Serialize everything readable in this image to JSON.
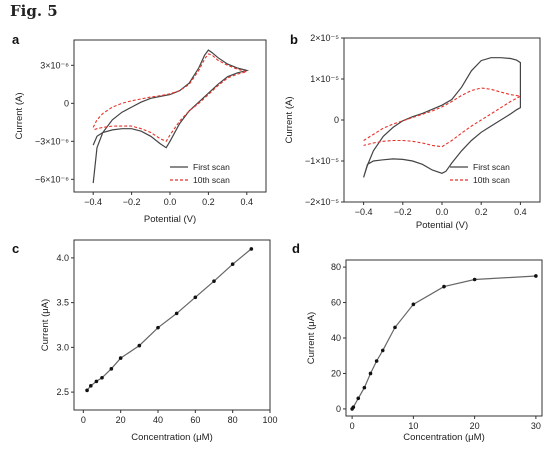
{
  "figure": {
    "title": "Fig. 5"
  },
  "colors": {
    "axis": "#333333",
    "solid": "#444444",
    "dashed": "#e8322a",
    "marker": "#111111"
  },
  "chart_data": [
    {
      "id": "a",
      "panel_label": "a",
      "type": "line",
      "xlabel": "Potential (V)",
      "ylabel": "Current (A)",
      "xlim": [
        -0.5,
        0.5
      ],
      "ylim": [
        -7e-06,
        5e-06
      ],
      "xticks": [
        -0.4,
        -0.2,
        0.0,
        0.2,
        0.4
      ],
      "xtick_labels": [
        "−0.4",
        "−0.2",
        "0.0",
        "0.2",
        "0.4"
      ],
      "yticks": [
        3e-06,
        0,
        -3e-06,
        -6e-06
      ],
      "ytick_labels": [
        "3×10⁻⁶",
        "0",
        "−3×10⁻⁶",
        "−6×10⁻⁶"
      ],
      "legend_position": "bottom-right",
      "series": [
        {
          "name": "First scan",
          "style": "solid",
          "x": [
            -0.4,
            -0.38,
            -0.35,
            -0.3,
            -0.25,
            -0.2,
            -0.15,
            -0.1,
            -0.05,
            0.0,
            0.05,
            0.1,
            0.15,
            0.18,
            0.2,
            0.22,
            0.25,
            0.3,
            0.35,
            0.4,
            0.35,
            0.3,
            0.25,
            0.2,
            0.15,
            0.1,
            0.05,
            0.0,
            -0.02,
            -0.05,
            -0.1,
            -0.15,
            -0.2,
            -0.25,
            -0.3,
            -0.35,
            -0.38,
            -0.4
          ],
          "y": [
            -6.3e-06,
            -3.5e-06,
            -2.3e-06,
            -1.3e-06,
            -7e-07,
            -3e-07,
            1e-07,
            4e-07,
            5.5e-07,
            7e-07,
            1e-06,
            1.6e-06,
            2.8e-06,
            3.8e-06,
            4.2e-06,
            4e-06,
            3.6e-06,
            3.1e-06,
            2.8e-06,
            2.6e-06,
            2.4e-06,
            2.1e-06,
            1.5e-06,
            8e-07,
            1e-07,
            -6e-07,
            -1.6e-06,
            -3e-06,
            -3.5e-06,
            -3.2e-06,
            -2.6e-06,
            -2.2e-06,
            -2e-06,
            -2e-06,
            -2.1e-06,
            -2.3e-06,
            -2.6e-06,
            -3.3e-06
          ]
        },
        {
          "name": "10th scan",
          "style": "dashed",
          "x": [
            -0.4,
            -0.38,
            -0.35,
            -0.3,
            -0.25,
            -0.2,
            -0.15,
            -0.1,
            -0.05,
            0.0,
            0.05,
            0.1,
            0.15,
            0.18,
            0.2,
            0.22,
            0.25,
            0.3,
            0.35,
            0.4,
            0.35,
            0.3,
            0.25,
            0.2,
            0.15,
            0.1,
            0.05,
            0.0,
            -0.02,
            -0.05,
            -0.1,
            -0.15,
            -0.2,
            -0.25,
            -0.3,
            -0.35,
            -0.38,
            -0.4
          ],
          "y": [
            -1.9e-06,
            -1.3e-06,
            -8e-07,
            -3e-07,
            0.0,
            2e-07,
            3.5e-07,
            5e-07,
            6e-07,
            7.5e-07,
            1e-06,
            1.5e-06,
            2.6e-06,
            3.5e-06,
            3.9e-06,
            3.8e-06,
            3.4e-06,
            3e-06,
            2.7e-06,
            2.5e-06,
            2.3e-06,
            2e-06,
            1.4e-06,
            7e-07,
            0.0,
            -6e-07,
            -1.4e-06,
            -2.5e-06,
            -3e-06,
            -2.8e-06,
            -2.3e-06,
            -2e-06,
            -1.8e-06,
            -1.8e-06,
            -1.8e-06,
            -1.9e-06,
            -2e-06,
            -2.1e-06
          ]
        }
      ]
    },
    {
      "id": "b",
      "panel_label": "b",
      "type": "line",
      "xlabel": "Potential (V)",
      "ylabel": "Current (A)",
      "xlim": [
        -0.5,
        0.5
      ],
      "ylim": [
        -2e-05,
        2e-05
      ],
      "xticks": [
        -0.4,
        -0.2,
        0.0,
        0.2,
        0.4
      ],
      "xtick_labels": [
        "−0.4",
        "−0.2",
        "0.0",
        "0.2",
        "0.4"
      ],
      "yticks": [
        2e-05,
        1e-05,
        0,
        -1e-05,
        -2e-05
      ],
      "ytick_labels": [
        "2×10⁻⁵",
        "1×10⁻⁵",
        "0",
        "−1×10⁻⁵",
        "−2×10⁻⁵"
      ],
      "legend_position": "bottom-right",
      "series": [
        {
          "name": "First scan",
          "style": "solid",
          "x": [
            -0.4,
            -0.38,
            -0.35,
            -0.3,
            -0.25,
            -0.2,
            -0.15,
            -0.1,
            -0.05,
            0.0,
            0.05,
            0.1,
            0.15,
            0.2,
            0.25,
            0.3,
            0.35,
            0.38,
            0.4,
            0.4,
            0.38,
            0.35,
            0.3,
            0.25,
            0.2,
            0.15,
            0.1,
            0.05,
            0.02,
            0.0,
            -0.05,
            -0.1,
            -0.15,
            -0.2,
            -0.25,
            -0.3,
            -0.35,
            -0.38,
            -0.4
          ],
          "y": [
            -1.4e-05,
            -1.1e-05,
            -7.5e-06,
            -4e-06,
            -1.8e-06,
            -2e-07,
            8e-07,
            1.6e-06,
            2.6e-06,
            3.6e-06,
            5e-06,
            8e-06,
            1.2e-05,
            1.45e-05,
            1.52e-05,
            1.52e-05,
            1.5e-05,
            1.46e-05,
            1.4e-05,
            3e-06,
            2.5e-06,
            1.5e-06,
            0.0,
            -1.5e-06,
            -3e-06,
            -5e-06,
            -7.5e-06,
            -1.05e-05,
            -1.25e-05,
            -1.3e-05,
            -1.22e-05,
            -1.08e-05,
            -1e-05,
            -9.6e-06,
            -9.5e-06,
            -9.7e-06,
            -1e-05,
            -1.08e-05,
            -1.4e-05
          ]
        },
        {
          "name": "10th scan",
          "style": "dashed",
          "x": [
            -0.4,
            -0.35,
            -0.3,
            -0.25,
            -0.2,
            -0.15,
            -0.1,
            -0.05,
            0.0,
            0.05,
            0.1,
            0.15,
            0.2,
            0.25,
            0.3,
            0.35,
            0.4,
            0.35,
            0.3,
            0.25,
            0.2,
            0.15,
            0.1,
            0.05,
            0.0,
            -0.05,
            -0.1,
            -0.15,
            -0.2,
            -0.25,
            -0.3,
            -0.35,
            -0.4
          ],
          "y": [
            -5e-06,
            -3.5e-06,
            -2e-06,
            -1e-06,
            -2e-07,
            6e-07,
            1.4e-06,
            2.2e-06,
            3.2e-06,
            4.5e-06,
            6e-06,
            7.2e-06,
            7.8e-06,
            7.5e-06,
            6.8e-06,
            6.2e-06,
            5.8e-06,
            4.5e-06,
            3e-06,
            1.5e-06,
            0.0,
            -1.5e-06,
            -3.2e-06,
            -5e-06,
            -6.5e-06,
            -6.2e-06,
            -5.6e-06,
            -5.2e-06,
            -5e-06,
            -5e-06,
            -5.2e-06,
            -5.6e-06,
            -6.2e-06
          ]
        }
      ]
    },
    {
      "id": "c",
      "panel_label": "c",
      "type": "line",
      "xlabel": "Concentration (μM)",
      "ylabel": "Current (μA)",
      "xlim": [
        -5,
        100
      ],
      "ylim": [
        2.3,
        4.2
      ],
      "xticks": [
        0,
        20,
        40,
        60,
        80,
        100
      ],
      "xtick_labels": [
        "0",
        "20",
        "40",
        "60",
        "80",
        "100"
      ],
      "yticks": [
        2.5,
        3.0,
        3.5,
        4.0
      ],
      "ytick_labels": [
        "2.5",
        "3.0",
        "3.5",
        "4.0"
      ],
      "series": [
        {
          "style": "solid-markers",
          "x": [
            2,
            4,
            7,
            10,
            15,
            20,
            30,
            40,
            50,
            60,
            70,
            80,
            90
          ],
          "y": [
            2.52,
            2.57,
            2.62,
            2.66,
            2.76,
            2.88,
            3.02,
            3.22,
            3.38,
            3.56,
            3.74,
            3.93,
            4.1
          ]
        }
      ]
    },
    {
      "id": "d",
      "panel_label": "d",
      "type": "line",
      "xlabel": "Concentration (μM)",
      "ylabel": "Current (μA)",
      "xlim": [
        -1,
        31
      ],
      "ylim": [
        -4,
        84
      ],
      "xticks": [
        0,
        10,
        20,
        30
      ],
      "xtick_labels": [
        "0",
        "10",
        "20",
        "30"
      ],
      "yticks": [
        0,
        20,
        40,
        60,
        80
      ],
      "ytick_labels": [
        "0",
        "20",
        "40",
        "60",
        "80"
      ],
      "series": [
        {
          "style": "solid-markers",
          "x": [
            0,
            0.2,
            1,
            2,
            3,
            4,
            5,
            7,
            10,
            15,
            20,
            30
          ],
          "y": [
            0,
            1,
            6,
            12,
            20,
            27,
            33,
            46,
            59,
            69,
            73,
            75
          ]
        }
      ]
    }
  ]
}
